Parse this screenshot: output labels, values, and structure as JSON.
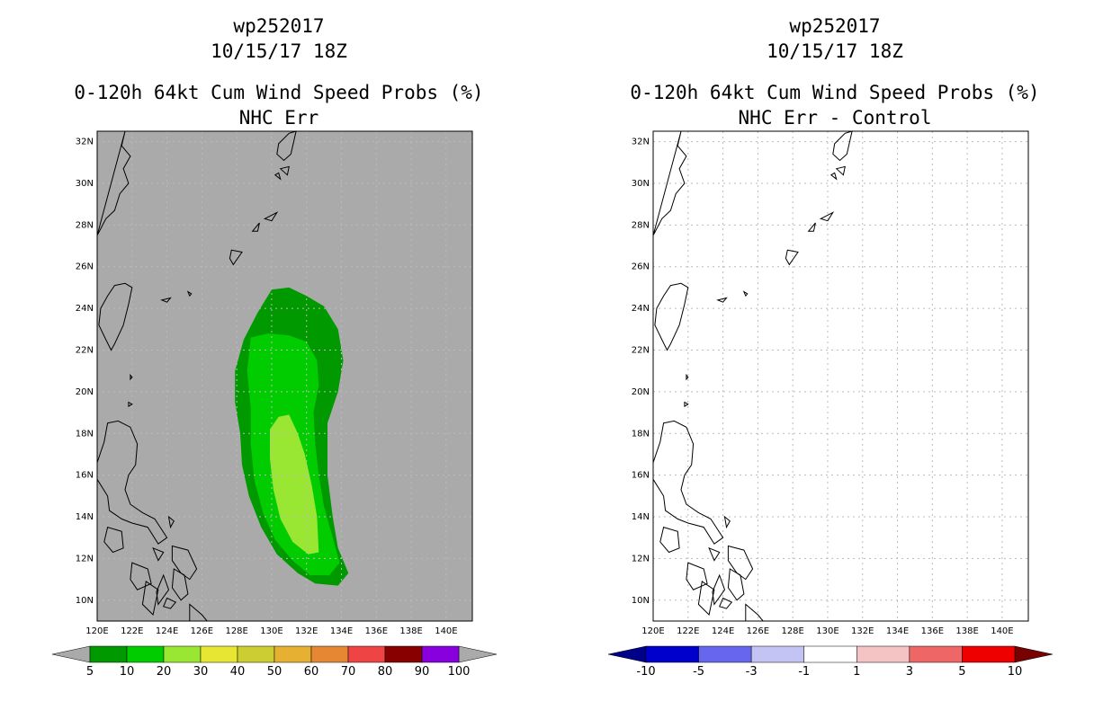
{
  "left_panel": {
    "title_storm": "wp252017",
    "title_time": "10/15/17 18Z",
    "title_product": "0-120h 64kt Cum Wind Speed Probs (%)",
    "title_subtitle": "NHC Err",
    "background_color": "#aaaaaa",
    "colorbar": {
      "colors": [
        "#009900",
        "#00cc00",
        "#99e633",
        "#e6e633",
        "#cccc33",
        "#e6b033",
        "#e68833",
        "#ee4444",
        "#880000",
        "#8800dd"
      ],
      "labels": [
        "5",
        "10",
        "20",
        "30",
        "40",
        "50",
        "60",
        "70",
        "80",
        "90",
        "100"
      ]
    }
  },
  "right_panel": {
    "title_storm": "wp252017",
    "title_time": "10/15/17 18Z",
    "title_product": "0-120h 64kt Cum Wind Speed Probs (%)",
    "title_subtitle": "NHC Err - Control",
    "background_color": "#ffffff",
    "colorbar": {
      "colors": [
        "#0000cc",
        "#6666ee",
        "#c4c4f4",
        "#ffffff",
        "#f4c4c4",
        "#ee6666",
        "#ee0000"
      ],
      "labels": [
        "-10",
        "-5",
        "-3",
        "-1",
        "1",
        "3",
        "5",
        "10"
      ]
    }
  },
  "map": {
    "lon_labels": [
      "120E",
      "122E",
      "124E",
      "126E",
      "128E",
      "130E",
      "132E",
      "134E",
      "136E",
      "138E",
      "140E"
    ],
    "lat_labels": [
      "32N",
      "30N",
      "28N",
      "26N",
      "24N",
      "22N",
      "20N",
      "18N",
      "16N",
      "14N",
      "12N",
      "10N"
    ],
    "lon_range": [
      120,
      141.5
    ],
    "lat_range": [
      9,
      32.5
    ]
  },
  "probability_contours": {
    "5": [
      [
        130,
        24.9
      ],
      [
        131,
        25
      ],
      [
        132,
        24.6
      ],
      [
        133,
        24.1
      ],
      [
        133.8,
        23
      ],
      [
        134.1,
        21.5
      ],
      [
        133.8,
        20
      ],
      [
        133.2,
        18.5
      ],
      [
        133.2,
        16
      ],
      [
        133.5,
        14
      ],
      [
        133.8,
        12.5
      ],
      [
        134.4,
        11.3
      ],
      [
        133.8,
        10.7
      ],
      [
        132.5,
        10.8
      ],
      [
        131.5,
        11.3
      ],
      [
        130.3,
        12.2
      ],
      [
        129.4,
        13.5
      ],
      [
        128.7,
        15
      ],
      [
        128.3,
        16.5
      ],
      [
        128.2,
        18
      ],
      [
        127.9,
        19.5
      ],
      [
        127.9,
        21
      ],
      [
        128.4,
        22.5
      ],
      [
        129.2,
        23.8
      ]
    ],
    "10": [
      [
        128.8,
        22.6
      ],
      [
        129.8,
        22.8
      ],
      [
        131,
        22.7
      ],
      [
        132,
        22.4
      ],
      [
        132.6,
        21.5
      ],
      [
        132.7,
        20.3
      ],
      [
        132.4,
        19
      ],
      [
        132.5,
        17.5
      ],
      [
        132.7,
        16
      ],
      [
        133,
        14.5
      ],
      [
        133.5,
        13
      ],
      [
        133.9,
        11.8
      ],
      [
        133.3,
        11.2
      ],
      [
        132.2,
        11.2
      ],
      [
        131.2,
        11.9
      ],
      [
        130.2,
        12.9
      ],
      [
        129.5,
        14.2
      ],
      [
        129,
        15.8
      ],
      [
        128.8,
        17.5
      ],
      [
        128.8,
        19.2
      ],
      [
        128.6,
        21
      ]
    ],
    "20": [
      [
        130.4,
        18.8
      ],
      [
        131,
        18.9
      ],
      [
        131.5,
        18
      ],
      [
        131.9,
        17
      ],
      [
        132.3,
        15.5
      ],
      [
        132.6,
        14
      ],
      [
        132.7,
        12.3
      ],
      [
        132.1,
        12.2
      ],
      [
        131.2,
        12.8
      ],
      [
        130.5,
        13.9
      ],
      [
        130.1,
        15.3
      ],
      [
        129.9,
        16.8
      ],
      [
        129.9,
        18.2
      ]
    ]
  }
}
